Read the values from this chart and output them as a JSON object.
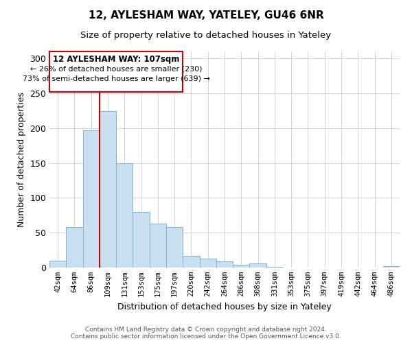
{
  "title": "12, AYLESHAM WAY, YATELEY, GU46 6NR",
  "subtitle": "Size of property relative to detached houses in Yateley",
  "xlabel": "Distribution of detached houses by size in Yateley",
  "ylabel": "Number of detached properties",
  "categories": [
    "42sqm",
    "64sqm",
    "86sqm",
    "109sqm",
    "131sqm",
    "153sqm",
    "175sqm",
    "197sqm",
    "220sqm",
    "242sqm",
    "264sqm",
    "286sqm",
    "308sqm",
    "331sqm",
    "353sqm",
    "375sqm",
    "397sqm",
    "419sqm",
    "442sqm",
    "464sqm",
    "486sqm"
  ],
  "values": [
    10,
    58,
    197,
    224,
    150,
    80,
    63,
    58,
    17,
    13,
    9,
    4,
    6,
    1,
    0,
    0,
    0,
    0,
    0,
    0,
    2
  ],
  "bar_color": "#c8dff0",
  "bar_edge_color": "#7ab4d4",
  "vline_color": "#cc0000",
  "annotation_title": "12 AYLESHAM WAY: 107sqm",
  "annotation_line1": "← 26% of detached houses are smaller (230)",
  "annotation_line2": "73% of semi-detached houses are larger (639) →",
  "box_color": "#ffffff",
  "box_edge_color": "#cc0000",
  "ylim": [
    0,
    310
  ],
  "yticks": [
    0,
    50,
    100,
    150,
    200,
    250,
    300
  ],
  "footer1": "Contains HM Land Registry data © Crown copyright and database right 2024.",
  "footer2": "Contains public sector information licensed under the Open Government Licence v3.0.",
  "background_color": "#ffffff"
}
